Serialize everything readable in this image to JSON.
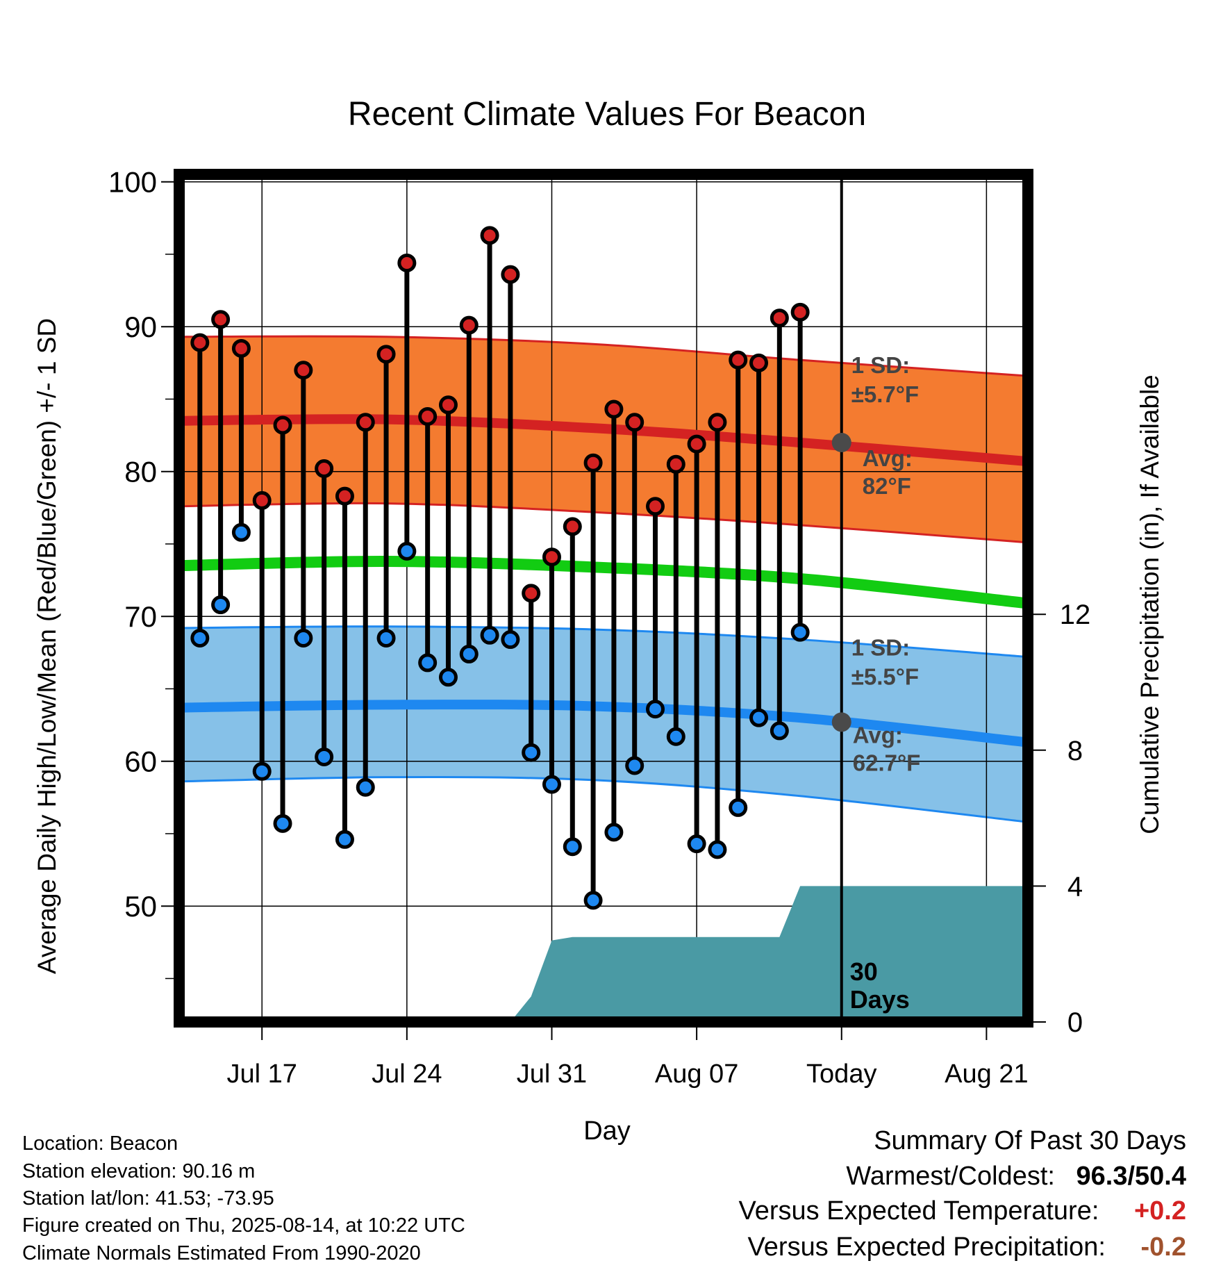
{
  "chart_data": {
    "type": "line",
    "title": "Recent Climate Values For Beacon",
    "xlabel": "Day",
    "ylabel": "Average Daily High/Low/Mean (Red/Blue/Green) +/- 1 SD",
    "y2label": "Cumulative Precipitation (in), If Available",
    "ylim": [
      42,
      102
    ],
    "y_ticks": [
      50,
      60,
      70,
      80,
      90,
      100
    ],
    "y_ticks_labels": [
      "50",
      "60",
      "70",
      "80",
      "90",
      "100"
    ],
    "y2lim": [
      0,
      21.4
    ],
    "y2_ticks": [
      0,
      4,
      8,
      12
    ],
    "y2_ticks_labels": [
      "0",
      "4",
      "8",
      "12"
    ],
    "x_range": [
      "2025-07-13",
      "2025-08-23"
    ],
    "x_ticks": [
      "2025-07-17",
      "2025-07-24",
      "2025-07-31",
      "2025-08-07",
      "2025-08-14",
      "2025-08-21"
    ],
    "x_tick_labels": [
      "Jul 17",
      "Jul 24",
      "Jul 31",
      "Aug 07",
      "Today",
      "Aug 21"
    ],
    "grid": true,
    "today": "2025-08-14",
    "today_note_line1": "30",
    "today_note_line2": "Days",
    "daily": {
      "dates": [
        "2025-07-14",
        "2025-07-15",
        "2025-07-16",
        "2025-07-17",
        "2025-07-18",
        "2025-07-19",
        "2025-07-20",
        "2025-07-21",
        "2025-07-22",
        "2025-07-23",
        "2025-07-24",
        "2025-07-25",
        "2025-07-26",
        "2025-07-27",
        "2025-07-28",
        "2025-07-29",
        "2025-07-30",
        "2025-07-31",
        "2025-08-01",
        "2025-08-02",
        "2025-08-03",
        "2025-08-04",
        "2025-08-05",
        "2025-08-06",
        "2025-08-07",
        "2025-08-08",
        "2025-08-09",
        "2025-08-10",
        "2025-08-11",
        "2025-08-12",
        "2025-08-13"
      ],
      "high": [
        88.9,
        90.5,
        88.5,
        78.0,
        83.2,
        87.0,
        80.2,
        78.3,
        83.4,
        88.1,
        94.4,
        83.8,
        84.6,
        90.1,
        96.3,
        93.6,
        71.6,
        74.1,
        76.2,
        80.6,
        84.3,
        83.4,
        77.6,
        80.5,
        81.9,
        83.4,
        87.7,
        87.5,
        90.6,
        91.0,
        null
      ],
      "low": [
        68.5,
        70.8,
        75.8,
        59.3,
        55.7,
        68.5,
        60.3,
        54.6,
        58.2,
        68.5,
        74.5,
        66.8,
        65.8,
        67.4,
        68.7,
        68.4,
        60.6,
        58.4,
        54.1,
        50.4,
        55.1,
        59.7,
        63.6,
        61.7,
        54.3,
        53.9,
        56.8,
        63.0,
        62.1,
        68.9,
        null
      ]
    },
    "normals": {
      "dates": [
        "2025-07-13",
        "2025-07-23",
        "2025-08-02",
        "2025-08-12",
        "2025-08-23"
      ],
      "high_avg": [
        83.5,
        83.6,
        83.0,
        82.0,
        80.7
      ],
      "high_sd_upper": [
        89.3,
        89.3,
        88.8,
        87.7,
        86.6
      ],
      "high_sd_lower": [
        77.6,
        77.8,
        77.2,
        76.3,
        75.1
      ],
      "mean_avg": [
        73.5,
        73.8,
        73.4,
        72.6,
        70.9
      ],
      "low_avg": [
        63.7,
        63.9,
        63.8,
        63.0,
        61.3
      ],
      "low_sd_upper": [
        69.2,
        69.3,
        69.1,
        68.4,
        67.2
      ],
      "low_sd_lower": [
        58.6,
        58.9,
        58.7,
        57.6,
        55.8
      ]
    },
    "today_avg_high": 82,
    "today_avg_low": 62.7,
    "annotations": {
      "high_sd_line1": "1 SD:",
      "high_sd_line2": "±5.7°F",
      "high_avg_line1": "Avg:",
      "high_avg_line2": "82°F",
      "low_sd_line1": "1 SD:",
      "low_sd_line2": "±5.5°F",
      "low_avg_line1": "Avg:",
      "low_avg_line2": "62.7°F"
    },
    "precip": {
      "dates": [
        "2025-07-29",
        "2025-07-30",
        "2025-07-31",
        "2025-08-01",
        "2025-08-11",
        "2025-08-12",
        "2025-08-23"
      ],
      "values": [
        0,
        0.75,
        2.4,
        2.5,
        2.5,
        4.0,
        4.0
      ]
    },
    "colors": {
      "high_band": "#f47b30",
      "high_line": "#d42222",
      "mean_line": "#12cc12",
      "low_band": "#86c1e8",
      "low_line": "#1e88f0",
      "precip_fill": "#4a9aa4",
      "high_dot": "#d42222",
      "low_dot": "#1e88f0",
      "avg_marker": "#4a4a4a",
      "annotation_text": "#444444",
      "plus_color": "#d42222",
      "minus_color": "#a0522d"
    }
  },
  "footer": {
    "location": "Location: Beacon",
    "elevation": "Station elevation: 90.16 m",
    "latlon": "Station lat/lon: 41.53; -73.95",
    "created": "Figure created on Thu, 2025-08-14, at 10:22 UTC",
    "normals": "Climate Normals Estimated From 1990-2020"
  },
  "summary": {
    "heading": "Summary Of Past 30 Days",
    "warm_cold_label": "Warmest/Coldest:",
    "warm_cold_value": "96.3/50.4",
    "temp_label": "Versus Expected Temperature:",
    "temp_value": "+0.2",
    "precip_label": "Versus Expected Precipitation:",
    "precip_value": "-0.2"
  }
}
